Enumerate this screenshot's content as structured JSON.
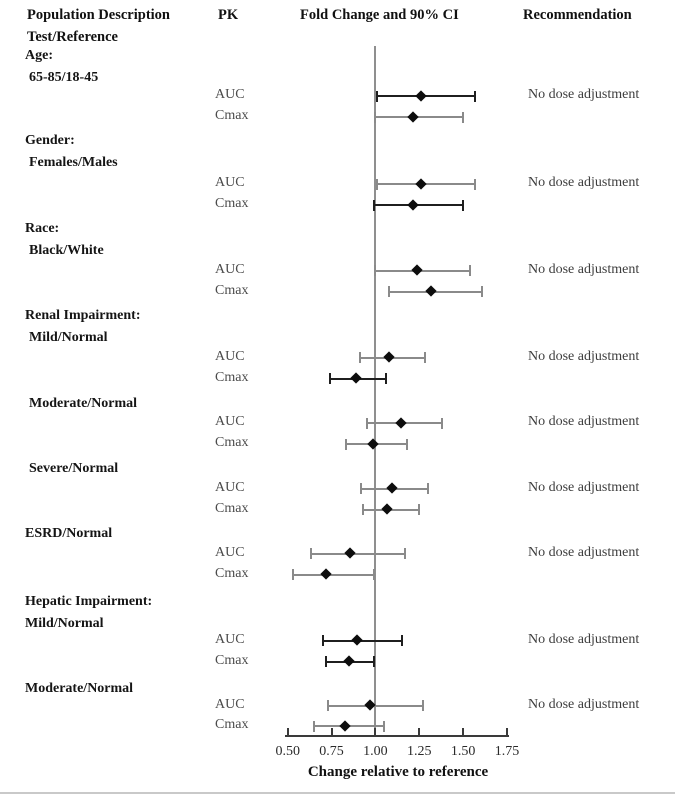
{
  "header": {
    "col1_line1": "Population Description",
    "col1_line2": "Test/Reference",
    "col2": "PK",
    "col3": "Fold Change and 90% CI",
    "col4": "Recommendation"
  },
  "axis": {
    "tick_labels": [
      "0.50",
      "0.75",
      "1.00",
      "1.25",
      "1.50",
      "1.75"
    ],
    "title": "Change relative to reference"
  },
  "chart_data": {
    "type": "forest",
    "xlabel": "Change relative to reference",
    "x_ticks": [
      0.5,
      0.75,
      1.0,
      1.25,
      1.5,
      1.75
    ],
    "xlim": [
      0.5,
      1.75
    ],
    "reference_line": 1.0,
    "ci_level": "90%",
    "colors": {
      "dark": "#1f1f1f",
      "gray": "#8a8a8a"
    },
    "groups": [
      {
        "label_lines": [
          {
            "text": "Age:",
            "indent": false
          },
          {
            "text": "65-85/18-45",
            "indent": true
          }
        ],
        "recommendation": "No dose adjustment",
        "rows": [
          {
            "pk": "AUC",
            "value": 1.26,
            "lo": 1.01,
            "hi": 1.57,
            "color": "dark"
          },
          {
            "pk": "Cmax",
            "value": 1.22,
            "lo": 1.0,
            "hi": 1.5,
            "color": "gray"
          }
        ]
      },
      {
        "label_lines": [
          {
            "text": "Gender:",
            "indent": false
          },
          {
            "text": "Females/Males",
            "indent": true
          }
        ],
        "recommendation": "No dose adjustment",
        "rows": [
          {
            "pk": "AUC",
            "value": 1.26,
            "lo": 1.01,
            "hi": 1.57,
            "color": "gray"
          },
          {
            "pk": "Cmax",
            "value": 1.22,
            "lo": 0.99,
            "hi": 1.5,
            "color": "dark"
          }
        ]
      },
      {
        "label_lines": [
          {
            "text": "Race:",
            "indent": false
          },
          {
            "text": "Black/White",
            "indent": true
          }
        ],
        "recommendation": "No dose adjustment",
        "rows": [
          {
            "pk": "AUC",
            "value": 1.24,
            "lo": 1.0,
            "hi": 1.54,
            "color": "gray"
          },
          {
            "pk": "Cmax",
            "value": 1.32,
            "lo": 1.08,
            "hi": 1.61,
            "color": "gray"
          }
        ]
      },
      {
        "label_lines": [
          {
            "text": "Renal Impairment:",
            "indent": false
          },
          {
            "text": "Mild/Normal",
            "indent": true
          }
        ],
        "recommendation": "No dose adjustment",
        "rows": [
          {
            "pk": "AUC",
            "value": 1.08,
            "lo": 0.91,
            "hi": 1.28,
            "color": "gray"
          },
          {
            "pk": "Cmax",
            "value": 0.89,
            "lo": 0.74,
            "hi": 1.06,
            "color": "dark"
          }
        ]
      },
      {
        "label_lines": [
          {
            "text": "Moderate/Normal",
            "indent": true
          }
        ],
        "recommendation": "No dose adjustment",
        "rows": [
          {
            "pk": "AUC",
            "value": 1.15,
            "lo": 0.95,
            "hi": 1.38,
            "color": "gray"
          },
          {
            "pk": "Cmax",
            "value": 0.99,
            "lo": 0.83,
            "hi": 1.18,
            "color": "gray"
          }
        ]
      },
      {
        "label_lines": [
          {
            "text": "Severe/Normal",
            "indent": true
          }
        ],
        "recommendation": "No dose adjustment",
        "rows": [
          {
            "pk": "AUC",
            "value": 1.1,
            "lo": 0.92,
            "hi": 1.3,
            "color": "gray"
          },
          {
            "pk": "Cmax",
            "value": 1.07,
            "lo": 0.93,
            "hi": 1.25,
            "color": "gray"
          }
        ]
      },
      {
        "label_lines": [
          {
            "text": "ESRD/Normal",
            "indent": false
          }
        ],
        "recommendation": "No dose adjustment",
        "rows": [
          {
            "pk": "AUC",
            "value": 0.86,
            "lo": 0.63,
            "hi": 1.17,
            "color": "gray"
          },
          {
            "pk": "Cmax",
            "value": 0.72,
            "lo": 0.53,
            "hi": 0.99,
            "color": "gray"
          }
        ]
      },
      {
        "label_lines": [
          {
            "text": "Hepatic Impairment:",
            "indent": false
          },
          {
            "text": "Mild/Normal",
            "indent": false
          }
        ],
        "recommendation": "No dose adjustment",
        "rows": [
          {
            "pk": "AUC",
            "value": 0.9,
            "lo": 0.7,
            "hi": 1.15,
            "color": "dark"
          },
          {
            "pk": "Cmax",
            "value": 0.85,
            "lo": 0.72,
            "hi": 0.99,
            "color": "dark"
          }
        ]
      },
      {
        "label_lines": [
          {
            "text": "Moderate/Normal",
            "indent": false
          }
        ],
        "recommendation": "No dose adjustment",
        "rows": [
          {
            "pk": "AUC",
            "value": 0.97,
            "lo": 0.73,
            "hi": 1.27,
            "color": "gray"
          },
          {
            "pk": "Cmax",
            "value": 0.83,
            "lo": 0.65,
            "hi": 1.05,
            "color": "gray"
          }
        ]
      }
    ]
  }
}
